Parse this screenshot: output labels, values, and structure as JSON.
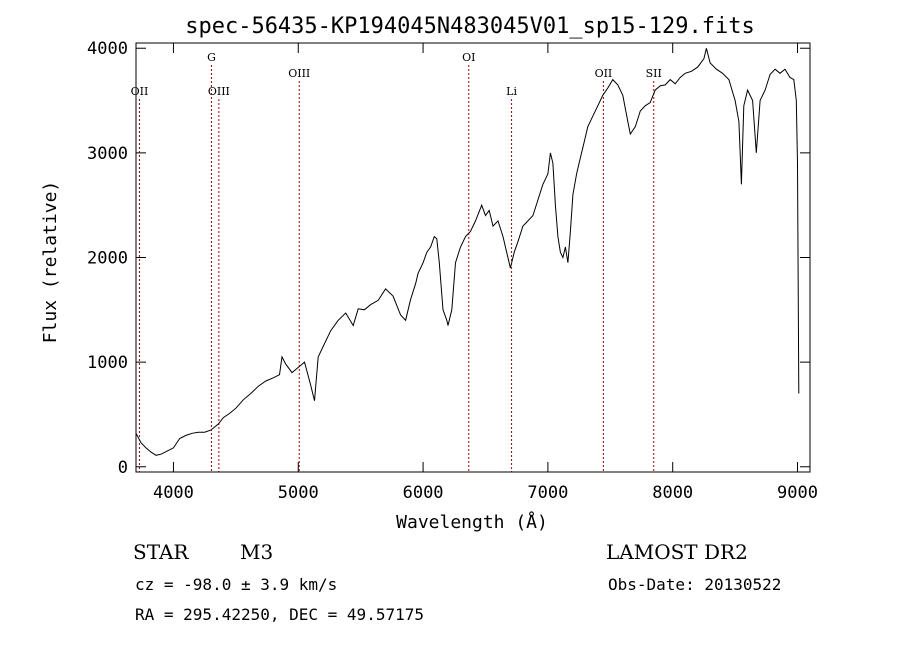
{
  "chart_data": {
    "type": "line",
    "title": "spec-56435-KP194045N483045V01_sp15-129.fits",
    "xlabel": "Wavelength (Å)",
    "ylabel": "Flux (relative)",
    "xlim": [
      3700,
      9100
    ],
    "ylim": [
      -50,
      4050
    ],
    "xticks": [
      4000,
      5000,
      6000,
      7000,
      8000,
      9000
    ],
    "yticks": [
      0,
      1000,
      2000,
      3000,
      4000
    ],
    "series": [
      {
        "values_x": [
          3700,
          3740,
          3780,
          3820,
          3860,
          3900,
          3950,
          4000,
          4050,
          4100,
          4150,
          4200,
          4250,
          4300,
          4330,
          4360,
          4400,
          4450,
          4500,
          4560,
          4620,
          4680,
          4740,
          4800,
          4850,
          4870,
          4900,
          4950,
          5000,
          5050,
          5100,
          5130,
          5160,
          5200,
          5260,
          5320,
          5380,
          5440,
          5480,
          5530,
          5580,
          5640,
          5700,
          5760,
          5820,
          5860,
          5900,
          5940,
          5960,
          5980,
          6000,
          6030,
          6060,
          6090,
          6110,
          6130,
          6160,
          6190,
          6200,
          6230,
          6260,
          6300,
          6340,
          6380,
          6420,
          6470,
          6500,
          6530,
          6560,
          6600,
          6640,
          6680,
          6700,
          6730,
          6760,
          6800,
          6840,
          6880,
          6920,
          6960,
          7000,
          7020,
          7040,
          7060,
          7080,
          7100,
          7120,
          7140,
          7160,
          7180,
          7200,
          7230,
          7260,
          7290,
          7320,
          7360,
          7400,
          7440,
          7480,
          7520,
          7560,
          7600,
          7640,
          7660,
          7700,
          7740,
          7780,
          7820,
          7860,
          7900,
          7940,
          7980,
          8020,
          8060,
          8100,
          8150,
          8200,
          8250,
          8270,
          8300,
          8350,
          8400,
          8450,
          8500,
          8530,
          8550,
          8570,
          8600,
          8640,
          8670,
          8700,
          8740,
          8780,
          8820,
          8860,
          8900,
          8940,
          8970,
          8990,
          9000,
          9010
        ],
        "values_y": [
          320,
          230,
          180,
          140,
          110,
          120,
          150,
          180,
          270,
          300,
          320,
          330,
          330,
          350,
          380,
          410,
          470,
          510,
          560,
          640,
          700,
          770,
          820,
          850,
          880,
          1050,
          980,
          900,
          950,
          1000,
          780,
          630,
          1050,
          1150,
          1300,
          1400,
          1470,
          1350,
          1510,
          1500,
          1550,
          1590,
          1700,
          1630,
          1450,
          1400,
          1600,
          1750,
          1850,
          1900,
          1950,
          2050,
          2100,
          2200,
          2180,
          1950,
          1500,
          1400,
          1350,
          1500,
          1950,
          2100,
          2200,
          2250,
          2350,
          2500,
          2400,
          2450,
          2300,
          2350,
          2200,
          2000,
          1900,
          2050,
          2150,
          2300,
          2350,
          2400,
          2550,
          2700,
          2800,
          3000,
          2900,
          2500,
          2200,
          2050,
          2000,
          2100,
          1950,
          2250,
          2600,
          2800,
          2950,
          3100,
          3250,
          3350,
          3450,
          3550,
          3620,
          3700,
          3650,
          3550,
          3300,
          3180,
          3250,
          3400,
          3450,
          3480,
          3600,
          3640,
          3650,
          3700,
          3660,
          3720,
          3760,
          3780,
          3820,
          3900,
          4000,
          3860,
          3800,
          3760,
          3700,
          3500,
          3300,
          2700,
          3450,
          3600,
          3500,
          3000,
          3500,
          3600,
          3750,
          3800,
          3760,
          3800,
          3720,
          3700,
          3500,
          2900,
          700
        ]
      }
    ],
    "line_markers": [
      {
        "label": "OII",
        "wavelength": 3728,
        "row": "mid"
      },
      {
        "label": "G",
        "wavelength": 4305,
        "row": "top"
      },
      {
        "label": "OIII",
        "wavelength": 4364,
        "row": "mid"
      },
      {
        "label": "OIII",
        "wavelength": 5008,
        "row": "upper"
      },
      {
        "label": "OI",
        "wavelength": 6366,
        "row": "top"
      },
      {
        "label": "Li",
        "wavelength": 6709,
        "row": "mid"
      },
      {
        "label": "OII",
        "wavelength": 7445,
        "row": "upper"
      },
      {
        "label": "SII",
        "wavelength": 7848,
        "row": "upper"
      }
    ],
    "colors": {
      "spectrum": "#000000",
      "marker": "#c00000"
    }
  },
  "info": {
    "object_class": "STAR",
    "subclass": "M3",
    "survey": "LAMOST DR2",
    "cz": "cz = -98.0 ± 3.9 km/s",
    "obs_date": "Obs-Date: 20130522",
    "coords": "RA = 295.42250, DEC =  49.57175"
  }
}
